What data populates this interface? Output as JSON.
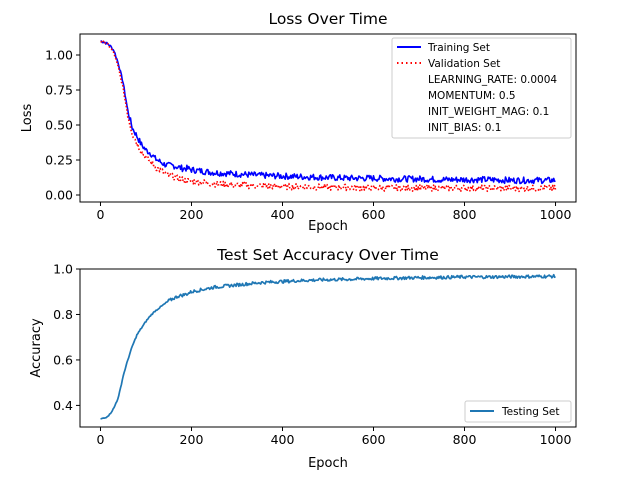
{
  "chart_data": [
    {
      "type": "line",
      "title": "Loss Over Time",
      "xlabel": "Epoch",
      "ylabel": "Loss",
      "xlim": [
        -45,
        1045
      ],
      "ylim": [
        -0.05,
        1.15
      ],
      "xticks": [
        0,
        200,
        400,
        600,
        800,
        1000
      ],
      "xtick_labels": [
        "0",
        "200",
        "400",
        "600",
        "800",
        "1000"
      ],
      "yticks": [
        0.0,
        0.25,
        0.5,
        0.75,
        1.0
      ],
      "ytick_labels": [
        "0.00",
        "0.25",
        "0.50",
        "0.75",
        "1.00"
      ],
      "grid": false,
      "legend_position": "top-right",
      "series": [
        {
          "name": "Training Set",
          "color": "#0000ff",
          "style": "solid",
          "x": [
            0,
            10,
            20,
            30,
            40,
            50,
            60,
            70,
            80,
            90,
            100,
            110,
            120,
            130,
            140,
            150,
            160,
            170,
            180,
            190,
            200,
            225,
            250,
            275,
            300,
            350,
            400,
            450,
            500,
            550,
            600,
            650,
            700,
            750,
            800,
            850,
            900,
            950,
            1000
          ],
          "y": [
            1.1,
            1.09,
            1.07,
            1.03,
            0.93,
            0.8,
            0.6,
            0.48,
            0.42,
            0.36,
            0.32,
            0.3,
            0.26,
            0.24,
            0.22,
            0.21,
            0.21,
            0.2,
            0.19,
            0.19,
            0.18,
            0.17,
            0.16,
            0.155,
            0.15,
            0.14,
            0.135,
            0.13,
            0.125,
            0.12,
            0.12,
            0.115,
            0.115,
            0.11,
            0.11,
            0.11,
            0.105,
            0.105,
            0.105
          ]
        },
        {
          "name": "Validation Set",
          "color": "#ff0000",
          "style": "dotted",
          "x": [
            0,
            10,
            20,
            30,
            40,
            50,
            60,
            70,
            80,
            90,
            100,
            110,
            120,
            130,
            140,
            150,
            160,
            170,
            180,
            190,
            200,
            225,
            250,
            275,
            300,
            350,
            400,
            450,
            500,
            550,
            600,
            650,
            700,
            750,
            800,
            850,
            900,
            950,
            1000
          ],
          "y": [
            1.1,
            1.09,
            1.06,
            1.01,
            0.9,
            0.76,
            0.57,
            0.44,
            0.37,
            0.31,
            0.27,
            0.24,
            0.2,
            0.18,
            0.16,
            0.14,
            0.13,
            0.12,
            0.11,
            0.1,
            0.1,
            0.09,
            0.08,
            0.075,
            0.07,
            0.065,
            0.06,
            0.06,
            0.055,
            0.055,
            0.05,
            0.05,
            0.05,
            0.05,
            0.05,
            0.048,
            0.048,
            0.047,
            0.047
          ]
        }
      ],
      "legend_extra_text": [
        "LEARNING_RATE: 0.0004",
        "MOMENTUM: 0.5",
        "INIT_WEIGHT_MAG: 0.1",
        "INIT_BIAS: 0.1"
      ]
    },
    {
      "type": "line",
      "title": "Test Set Accuracy Over Time",
      "xlabel": "Epoch",
      "ylabel": "Accuracy",
      "xlim": [
        -45,
        1045
      ],
      "ylim": [
        0.305,
        1.0
      ],
      "xticks": [
        0,
        200,
        400,
        600,
        800,
        1000
      ],
      "xtick_labels": [
        "0",
        "200",
        "400",
        "600",
        "800",
        "1000"
      ],
      "yticks": [
        0.4,
        0.6,
        0.8,
        1.0
      ],
      "ytick_labels": [
        "0.4",
        "0.6",
        "0.8",
        "1.0"
      ],
      "grid": false,
      "legend_position": "bottom-right",
      "series": [
        {
          "name": "Testing Set",
          "color": "#1f77b4",
          "style": "solid",
          "x": [
            0,
            10,
            20,
            30,
            40,
            50,
            60,
            70,
            80,
            90,
            100,
            110,
            120,
            130,
            140,
            150,
            160,
            170,
            180,
            190,
            200,
            225,
            250,
            275,
            300,
            350,
            400,
            450,
            500,
            550,
            600,
            650,
            700,
            750,
            800,
            850,
            900,
            950,
            1000
          ],
          "y": [
            0.34,
            0.345,
            0.36,
            0.39,
            0.44,
            0.53,
            0.6,
            0.66,
            0.71,
            0.74,
            0.77,
            0.795,
            0.815,
            0.83,
            0.845,
            0.86,
            0.87,
            0.88,
            0.885,
            0.89,
            0.9,
            0.91,
            0.92,
            0.925,
            0.93,
            0.94,
            0.945,
            0.95,
            0.953,
            0.955,
            0.958,
            0.96,
            0.962,
            0.963,
            0.965,
            0.965,
            0.966,
            0.967,
            0.968
          ]
        }
      ]
    }
  ]
}
